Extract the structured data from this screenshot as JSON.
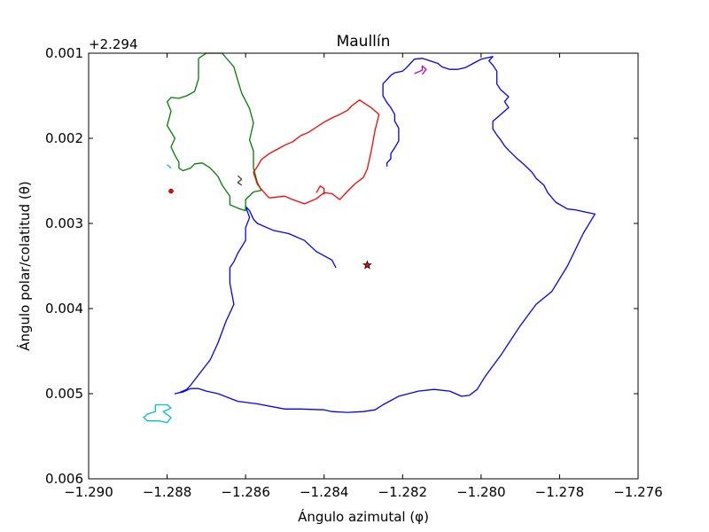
{
  "chart_data": {
    "type": "line",
    "title": "Maullín",
    "xlabel": "Ángulo azimutal (φ)",
    "ylabel": "Ángulo polar/colatitud (θ)",
    "y_offset_label": "+2.294",
    "xlim": [
      -1.29,
      -1.276
    ],
    "ylim": [
      0.006,
      0.001
    ],
    "y_inverted": true,
    "x_ticks": [
      -1.29,
      -1.288,
      -1.286,
      -1.284,
      -1.282,
      -1.28,
      -1.278,
      -1.276
    ],
    "x_tick_labels": [
      "−1.290",
      "−1.288",
      "−1.286",
      "−1.284",
      "−1.282",
      "−1.280",
      "−1.278",
      "−1.276"
    ],
    "y_ticks": [
      0.001,
      0.002,
      0.003,
      0.004,
      0.005,
      0.006
    ],
    "y_tick_labels": [
      "0.001",
      "0.002",
      "0.003",
      "0.004",
      "0.005",
      "0.006"
    ],
    "grid": false,
    "legend": "none",
    "series": [
      {
        "color": "#0000ff",
        "points": [
          [
            -1.2837,
            0.00352
          ],
          [
            -1.2838,
            0.00343
          ],
          [
            -1.2842,
            0.00333
          ],
          [
            -1.2845,
            0.0032
          ],
          [
            -1.2849,
            0.00312
          ],
          [
            -1.2853,
            0.00308
          ],
          [
            -1.2857,
            0.003
          ],
          [
            -1.2858,
            0.00295
          ],
          [
            -1.2859,
            0.00285
          ],
          [
            -1.286,
            0.0028
          ],
          [
            -1.2859,
            0.00293
          ],
          [
            -1.286,
            0.00305
          ],
          [
            -1.286,
            0.0032
          ],
          [
            -1.2862,
            0.00335
          ],
          [
            -1.2863,
            0.00345
          ],
          [
            -1.2864,
            0.00352
          ],
          [
            -1.2864,
            0.0037
          ],
          [
            -1.2863,
            0.00395
          ],
          [
            -1.2865,
            0.00415
          ],
          [
            -1.2867,
            0.0044
          ],
          [
            -1.2869,
            0.0046
          ],
          [
            -1.2872,
            0.00478
          ],
          [
            -1.2874,
            0.0049
          ],
          [
            -1.2875,
            0.00495
          ],
          [
            -1.2877,
            0.00499
          ],
          [
            -1.2878,
            0.005
          ],
          [
            -1.2876,
            0.00498
          ],
          [
            -1.2874,
            0.00494
          ],
          [
            -1.2872,
            0.00494
          ],
          [
            -1.287,
            0.00497
          ],
          [
            -1.2867,
            0.005
          ],
          [
            -1.2862,
            0.00509
          ],
          [
            -1.2857,
            0.00512
          ],
          [
            -1.285,
            0.00518
          ],
          [
            -1.2846,
            0.00518
          ],
          [
            -1.284,
            0.00519
          ],
          [
            -1.2838,
            0.00521
          ],
          [
            -1.2834,
            0.00522
          ],
          [
            -1.283,
            0.00521
          ],
          [
            -1.2827,
            0.00519
          ],
          [
            -1.2825,
            0.00513
          ],
          [
            -1.2821,
            0.00503
          ],
          [
            -1.2816,
            0.00497
          ],
          [
            -1.2812,
            0.00495
          ],
          [
            -1.2808,
            0.00497
          ],
          [
            -1.2805,
            0.00503
          ],
          [
            -1.2803,
            0.00502
          ],
          [
            -1.2801,
            0.00495
          ],
          [
            -1.2799,
            0.0048
          ],
          [
            -1.2795,
            0.00455
          ],
          [
            -1.279,
            0.0042
          ],
          [
            -1.2786,
            0.00395
          ],
          [
            -1.2782,
            0.0038
          ],
          [
            -1.2778,
            0.0035
          ],
          [
            -1.2774,
            0.00312
          ],
          [
            -1.2771,
            0.00289
          ],
          [
            -1.2774,
            0.00286
          ],
          [
            -1.2776,
            0.00284
          ],
          [
            -1.2778,
            0.00283
          ],
          [
            -1.2781,
            0.00275
          ],
          [
            -1.2783,
            0.00264
          ],
          [
            -1.2784,
            0.00255
          ],
          [
            -1.2786,
            0.00247
          ],
          [
            -1.2787,
            0.0024
          ],
          [
            -1.2789,
            0.00231
          ],
          [
            -1.2791,
            0.00223
          ],
          [
            -1.2793,
            0.00214
          ],
          [
            -1.2794,
            0.00209
          ],
          [
            -1.2795,
            0.00202
          ],
          [
            -1.2796,
            0.00196
          ],
          [
            -1.2797,
            0.00189
          ],
          [
            -1.2797,
            0.0018
          ],
          [
            -1.2795,
            0.00172
          ],
          [
            -1.2793,
            0.00164
          ],
          [
            -1.2794,
            0.00157
          ],
          [
            -1.2793,
            0.00151
          ],
          [
            -1.2795,
            0.00143
          ],
          [
            -1.2796,
            0.00136
          ],
          [
            -1.2796,
            0.00129
          ],
          [
            -1.2796,
            0.00121
          ],
          [
            -1.2797,
            0.00114
          ],
          [
            -1.2798,
            0.00109
          ],
          [
            -1.2797,
            0.00104
          ],
          [
            -1.28,
            0.00107
          ],
          [
            -1.2802,
            0.00112
          ],
          [
            -1.2804,
            0.00117
          ],
          [
            -1.2806,
            0.00119
          ],
          [
            -1.2808,
            0.00119
          ],
          [
            -1.281,
            0.00116
          ],
          [
            -1.2811,
            0.00112
          ],
          [
            -1.2813,
            0.00109
          ],
          [
            -1.2815,
            0.00106
          ],
          [
            -1.2817,
            0.00107
          ],
          [
            -1.2818,
            0.00112
          ],
          [
            -1.2819,
            0.00117
          ],
          [
            -1.282,
            0.00121
          ],
          [
            -1.2822,
            0.00123
          ],
          [
            -1.2823,
            0.00126
          ],
          [
            -1.2824,
            0.00131
          ],
          [
            -1.2825,
            0.00136
          ],
          [
            -1.2825,
            0.00142
          ],
          [
            -1.2825,
            0.0015
          ],
          [
            -1.2824,
            0.00158
          ],
          [
            -1.2823,
            0.00164
          ],
          [
            -1.2822,
            0.00172
          ],
          [
            -1.2822,
            0.0018
          ],
          [
            -1.2821,
            0.00188
          ],
          [
            -1.2821,
            0.00196
          ],
          [
            -1.2821,
            0.00203
          ],
          [
            -1.2822,
            0.00211
          ],
          [
            -1.2823,
            0.00218
          ],
          [
            -1.2823,
            0.00224
          ],
          [
            -1.2824,
            0.00229
          ],
          [
            -1.2824,
            0.00233
          ]
        ]
      },
      {
        "color": "#008000",
        "points": [
          [
            -1.2872,
            0.00106
          ],
          [
            -1.287,
            0.001
          ],
          [
            -1.2866,
            0.001
          ],
          [
            -1.2863,
            0.00116
          ],
          [
            -1.2862,
            0.00132
          ],
          [
            -1.2861,
            0.00147
          ],
          [
            -1.2859,
            0.00165
          ],
          [
            -1.2858,
            0.00182
          ],
          [
            -1.2859,
            0.00202
          ],
          [
            -1.2858,
            0.00215
          ],
          [
            -1.2858,
            0.00235
          ],
          [
            -1.2857,
            0.00252
          ],
          [
            -1.2856,
            0.00261
          ],
          [
            -1.2858,
            0.00263
          ],
          [
            -1.286,
            0.00272
          ],
          [
            -1.286,
            0.00285
          ],
          [
            -1.2862,
            0.00282
          ],
          [
            -1.2864,
            0.00278
          ],
          [
            -1.2864,
            0.00268
          ],
          [
            -1.2866,
            0.00255
          ],
          [
            -1.2867,
            0.00245
          ],
          [
            -1.2869,
            0.00235
          ],
          [
            -1.2871,
            0.00229
          ],
          [
            -1.2873,
            0.0023
          ],
          [
            -1.2874,
            0.00235
          ],
          [
            -1.2876,
            0.00238
          ],
          [
            -1.2877,
            0.00235
          ],
          [
            -1.2877,
            0.00228
          ],
          [
            -1.2878,
            0.0022
          ],
          [
            -1.2879,
            0.0021
          ],
          [
            -1.2878,
            0.002
          ],
          [
            -1.288,
            0.00185
          ],
          [
            -1.2879,
            0.00168
          ],
          [
            -1.288,
            0.00157
          ],
          [
            -1.2879,
            0.00152
          ],
          [
            -1.2877,
            0.00153
          ],
          [
            -1.2875,
            0.0015
          ],
          [
            -1.2873,
            0.00145
          ],
          [
            -1.2872,
            0.0013
          ],
          [
            -1.2872,
            0.00106
          ]
        ]
      },
      {
        "color": "#ff0000",
        "points": [
          [
            -1.2854,
            0.0027
          ],
          [
            -1.2856,
            0.0026
          ],
          [
            -1.2857,
            0.00254
          ],
          [
            -1.2858,
            0.0024
          ],
          [
            -1.2857,
            0.00233
          ],
          [
            -1.2856,
            0.00225
          ],
          [
            -1.2854,
            0.00218
          ],
          [
            -1.2852,
            0.00213
          ],
          [
            -1.285,
            0.00208
          ],
          [
            -1.2848,
            0.00204
          ],
          [
            -1.2846,
            0.00197
          ],
          [
            -1.2844,
            0.00193
          ],
          [
            -1.2842,
            0.00187
          ],
          [
            -1.284,
            0.00181
          ],
          [
            -1.2838,
            0.00176
          ],
          [
            -1.2836,
            0.00172
          ],
          [
            -1.2834,
            0.00167
          ],
          [
            -1.2833,
            0.00162
          ],
          [
            -1.2831,
            0.00155
          ],
          [
            -1.2828,
            0.00164
          ],
          [
            -1.2826,
            0.00172
          ],
          [
            -1.2827,
            0.0019
          ],
          [
            -1.2828,
            0.00215
          ],
          [
            -1.2829,
            0.00236
          ],
          [
            -1.283,
            0.00246
          ],
          [
            -1.2832,
            0.00253
          ],
          [
            -1.2834,
            0.00262
          ],
          [
            -1.2836,
            0.00272
          ],
          [
            -1.2838,
            0.00265
          ],
          [
            -1.284,
            0.00264
          ],
          [
            -1.2842,
            0.00271
          ],
          [
            -1.2845,
            0.00277
          ],
          [
            -1.2848,
            0.00272
          ],
          [
            -1.285,
            0.00268
          ],
          [
            -1.2852,
            0.00269
          ],
          [
            -1.2854,
            0.0027
          ]
        ]
      },
      {
        "color": "#00bfbf",
        "points": [
          [
            -1.2883,
            0.00513
          ],
          [
            -1.288,
            0.00513
          ],
          [
            -1.2879,
            0.00517
          ],
          [
            -1.2881,
            0.00521
          ],
          [
            -1.2879,
            0.00528
          ],
          [
            -1.288,
            0.00534
          ],
          [
            -1.2882,
            0.00532
          ],
          [
            -1.2885,
            0.00532
          ],
          [
            -1.2886,
            0.00528
          ],
          [
            -1.2885,
            0.00524
          ],
          [
            -1.2883,
            0.00521
          ],
          [
            -1.2883,
            0.00513
          ]
        ]
      },
      {
        "color": "#bf00bf",
        "points": [
          [
            -1.2817,
            0.00124
          ],
          [
            -1.2815,
            0.0012
          ],
          [
            -1.2815,
            0.00115
          ],
          [
            -1.2814,
            0.00119
          ],
          [
            -1.2815,
            0.00125
          ]
        ]
      },
      {
        "color": "#404040",
        "points": [
          [
            -1.2862,
            0.00244
          ],
          [
            -1.2861,
            0.00248
          ],
          [
            -1.2862,
            0.00252
          ],
          [
            -1.2861,
            0.00255
          ]
        ]
      },
      {
        "color": "#00bfbf",
        "points": [
          [
            -1.288,
            0.00231
          ],
          [
            -1.2879,
            0.00235
          ]
        ]
      },
      {
        "color": "#ff0000",
        "points": [
          [
            -1.2842,
            0.00264
          ],
          [
            -1.2841,
            0.00256
          ],
          [
            -1.284,
            0.00259
          ],
          [
            -1.284,
            0.00266
          ]
        ]
      }
    ],
    "markers": [
      {
        "x": -1.2829,
        "y": 0.00349,
        "shape": "star",
        "color": "#ff0000"
      },
      {
        "x": -1.2879,
        "y": 0.00262,
        "shape": "dot",
        "color": "#ff0000"
      }
    ]
  }
}
